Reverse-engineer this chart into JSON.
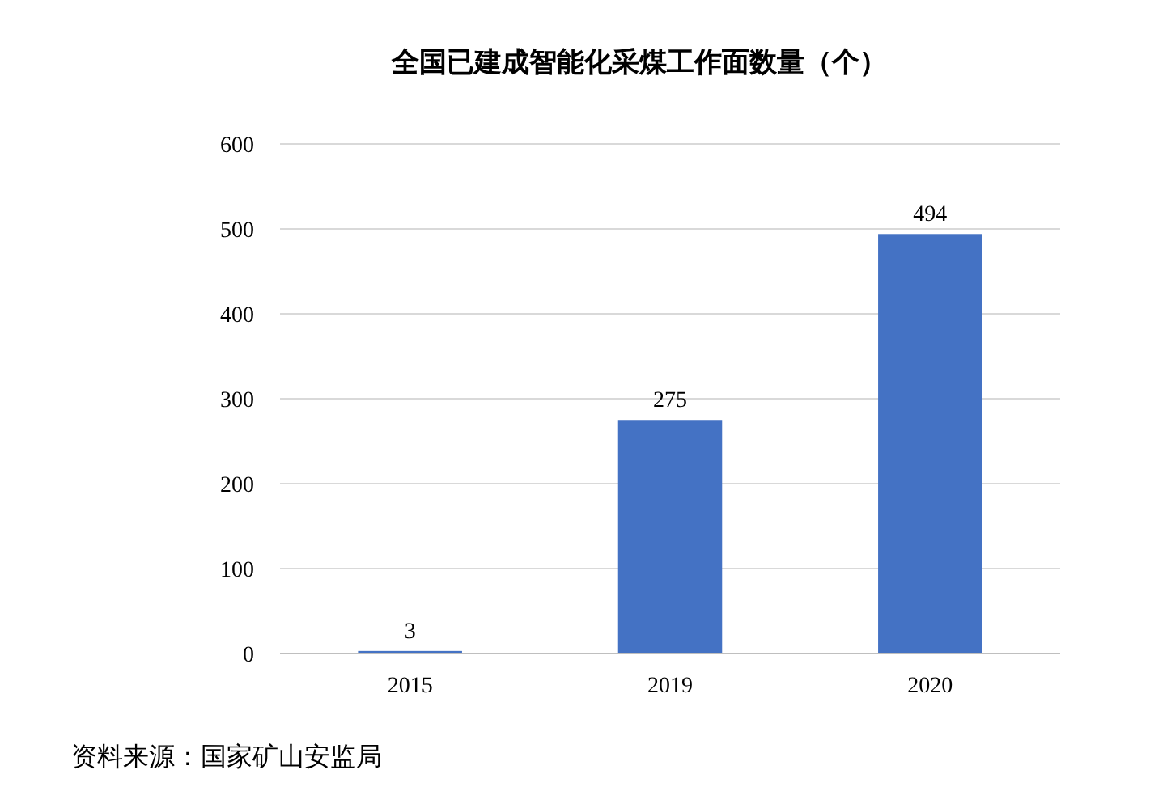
{
  "chart_data": {
    "type": "bar",
    "title": "全国已建成智能化采煤工作面数量（个）",
    "categories": [
      "2015",
      "2019",
      "2020"
    ],
    "values": [
      3,
      275,
      494
    ],
    "color": "#4472c4",
    "ylim": [
      0,
      600
    ],
    "yticks": [
      0,
      100,
      200,
      300,
      400,
      500,
      600
    ],
    "grid": "y",
    "data_labels": true,
    "annotations": [
      "资料来源：国家矿山安监局"
    ]
  }
}
